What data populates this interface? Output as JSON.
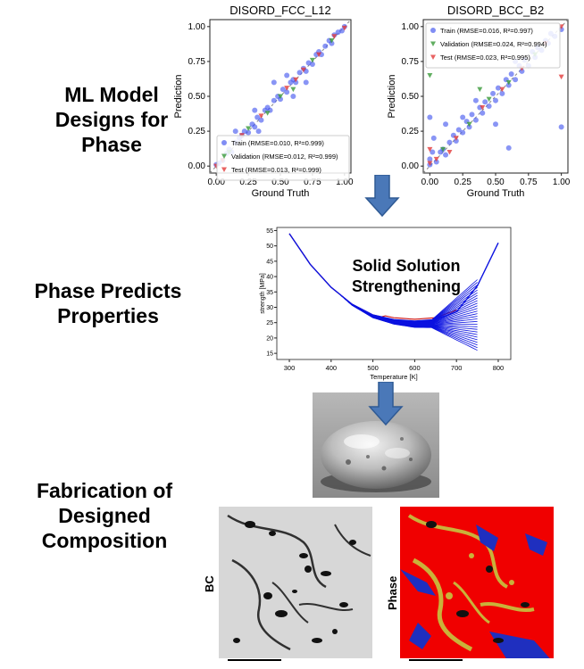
{
  "stages": [
    {
      "label": "ML Model\nDesigns for\nPhase"
    },
    {
      "label": "Phase Predicts\nProperties"
    },
    {
      "label": "Fabrication of\nDesigned\nComposition"
    }
  ],
  "chart_data": [
    {
      "type": "scatter",
      "title": "DISORD_FCC_L12",
      "xlabel": "Ground Truth",
      "ylabel": "Prediction",
      "xlim": [
        -0.05,
        1.05
      ],
      "ylim": [
        -0.05,
        1.05
      ],
      "xticks": [
        "0.00",
        "0.25",
        "0.50",
        "0.75",
        "1.00"
      ],
      "yticks": [
        "0.00",
        "0.25",
        "0.50",
        "0.75",
        "1.00"
      ],
      "legend_position": "lower-right",
      "series": [
        {
          "name": "Train (RMSE=0.010, R²=0.999)",
          "marker": "circle",
          "color": "#4a5cf0"
        },
        {
          "name": "Validation (RMSE=0.012, R²=0.999)",
          "marker": "triangle-down",
          "color": "#3a9a3a"
        },
        {
          "name": "Test (RMSE=0.013, R²=0.999)",
          "marker": "triangle-down",
          "color": "#e23b3b"
        }
      ],
      "points": {
        "train": [
          [
            0,
            0.01
          ],
          [
            0.02,
            0.02
          ],
          [
            0.05,
            0.04
          ],
          [
            0.08,
            0.09
          ],
          [
            0.1,
            0.12
          ],
          [
            0.12,
            0.1
          ],
          [
            0.15,
            0.17
          ],
          [
            0.18,
            0.2
          ],
          [
            0.2,
            0.22
          ],
          [
            0.22,
            0.25
          ],
          [
            0.25,
            0.24
          ],
          [
            0.28,
            0.3
          ],
          [
            0.3,
            0.28
          ],
          [
            0.32,
            0.35
          ],
          [
            0.35,
            0.33
          ],
          [
            0.38,
            0.4
          ],
          [
            0.4,
            0.42
          ],
          [
            0.42,
            0.4
          ],
          [
            0.45,
            0.47
          ],
          [
            0.48,
            0.5
          ],
          [
            0.5,
            0.48
          ],
          [
            0.52,
            0.55
          ],
          [
            0.55,
            0.53
          ],
          [
            0.58,
            0.6
          ],
          [
            0.6,
            0.62
          ],
          [
            0.62,
            0.6
          ],
          [
            0.65,
            0.67
          ],
          [
            0.68,
            0.7
          ],
          [
            0.7,
            0.68
          ],
          [
            0.72,
            0.74
          ],
          [
            0.75,
            0.73
          ],
          [
            0.78,
            0.8
          ],
          [
            0.8,
            0.82
          ],
          [
            0.82,
            0.8
          ],
          [
            0.85,
            0.86
          ],
          [
            0.88,
            0.9
          ],
          [
            0.9,
            0.88
          ],
          [
            0.92,
            0.94
          ],
          [
            0.95,
            0.96
          ],
          [
            0.98,
            0.97
          ],
          [
            1,
            1
          ],
          [
            0.15,
            0.25
          ],
          [
            0.3,
            0.4
          ],
          [
            0.55,
            0.65
          ],
          [
            0.6,
            0.5
          ],
          [
            0.45,
            0.6
          ],
          [
            0.33,
            0.25
          ],
          [
            0.7,
            0.6
          ]
        ],
        "validation": [
          [
            0.1,
            0.1
          ],
          [
            0.25,
            0.27
          ],
          [
            0.5,
            0.5
          ],
          [
            0.6,
            0.55
          ],
          [
            0.75,
            0.76
          ],
          [
            0.9,
            0.9
          ],
          [
            0.4,
            0.38
          ]
        ],
        "test": [
          [
            0,
            0
          ],
          [
            0.05,
            0.04
          ],
          [
            0.2,
            0.22
          ],
          [
            0.35,
            0.36
          ],
          [
            0.55,
            0.56
          ],
          [
            0.68,
            0.69
          ],
          [
            0.8,
            0.8
          ],
          [
            0.92,
            0.93
          ],
          [
            1,
            0.99
          ],
          [
            0.62,
            0.62
          ]
        ]
      }
    },
    {
      "type": "scatter",
      "title": "DISORD_BCC_B2",
      "xlabel": "Ground Truth",
      "ylabel": "Prediction",
      "xlim": [
        -0.05,
        1.05
      ],
      "ylim": [
        -0.05,
        1.05
      ],
      "xticks": [
        "0.00",
        "0.25",
        "0.50",
        "0.75",
        "1.00"
      ],
      "yticks": [
        "0.00",
        "0.25",
        "0.50",
        "0.75",
        "1.00"
      ],
      "legend_position": "upper-left",
      "series": [
        {
          "name": "Train (RMSE=0.016, R²=0.997)",
          "marker": "circle",
          "color": "#4a5cf0"
        },
        {
          "name": "Validation (RMSE=0.024, R²=0.994)",
          "marker": "triangle-down",
          "color": "#3a9a3a"
        },
        {
          "name": "Test (RMSE=0.023, R²=0.995)",
          "marker": "triangle-down",
          "color": "#e23b3b"
        }
      ],
      "points": {
        "train": [
          [
            0,
            0.01
          ],
          [
            0,
            0.05
          ],
          [
            0.02,
            0.1
          ],
          [
            0.03,
            0.2
          ],
          [
            0,
            0.35
          ],
          [
            0.05,
            0.03
          ],
          [
            0.08,
            0.1
          ],
          [
            0.1,
            0.12
          ],
          [
            0.12,
            0.08
          ],
          [
            0.15,
            0.17
          ],
          [
            0.18,
            0.22
          ],
          [
            0.2,
            0.18
          ],
          [
            0.22,
            0.26
          ],
          [
            0.25,
            0.24
          ],
          [
            0.28,
            0.32
          ],
          [
            0.3,
            0.28
          ],
          [
            0.32,
            0.37
          ],
          [
            0.35,
            0.33
          ],
          [
            0.38,
            0.42
          ],
          [
            0.4,
            0.38
          ],
          [
            0.42,
            0.46
          ],
          [
            0.45,
            0.43
          ],
          [
            0.48,
            0.52
          ],
          [
            0.5,
            0.47
          ],
          [
            0.52,
            0.56
          ],
          [
            0.55,
            0.52
          ],
          [
            0.58,
            0.62
          ],
          [
            0.6,
            0.58
          ],
          [
            0.62,
            0.66
          ],
          [
            0.65,
            0.62
          ],
          [
            0.68,
            0.72
          ],
          [
            0.7,
            0.68
          ],
          [
            0.72,
            0.76
          ],
          [
            0.75,
            0.72
          ],
          [
            0.78,
            0.82
          ],
          [
            0.8,
            0.78
          ],
          [
            0.82,
            0.85
          ],
          [
            0.85,
            0.83
          ],
          [
            0.88,
            0.9
          ],
          [
            0.9,
            0.88
          ],
          [
            0.92,
            0.95
          ],
          [
            0.95,
            0.93
          ],
          [
            1,
            0.98
          ],
          [
            1,
            0.28
          ],
          [
            0.25,
            0.35
          ],
          [
            0.5,
            0.3
          ],
          [
            0.35,
            0.47
          ],
          [
            0.65,
            0.75
          ],
          [
            0.12,
            0.3
          ],
          [
            0.6,
            0.13
          ]
        ],
        "validation": [
          [
            0,
            0.65
          ],
          [
            0.1,
            0.12
          ],
          [
            0.3,
            0.3
          ],
          [
            0.45,
            0.48
          ],
          [
            0.6,
            0.6
          ],
          [
            0.8,
            0.8
          ],
          [
            0.38,
            0.55
          ]
        ],
        "test": [
          [
            0,
            0.02
          ],
          [
            0,
            0.12
          ],
          [
            0.05,
            0.05
          ],
          [
            0.2,
            0.2
          ],
          [
            0.4,
            0.42
          ],
          [
            0.55,
            0.55
          ],
          [
            0.7,
            0.7
          ],
          [
            0.88,
            0.88
          ],
          [
            1,
            1
          ],
          [
            1,
            0.64
          ],
          [
            0.15,
            0.1
          ]
        ]
      }
    },
    {
      "type": "line",
      "title": "",
      "annotation": "Solid Solution\nStrengthening",
      "xlabel": "Temperature [K]",
      "ylabel": "strength [MPa]",
      "xlim": [
        270,
        830
      ],
      "ylim": [
        13,
        56
      ],
      "xticks": [
        "300",
        "400",
        "500",
        "600",
        "700",
        "800"
      ],
      "yticks": [
        "15",
        "20",
        "25",
        "30",
        "35",
        "40",
        "45",
        "50",
        "55"
      ],
      "curve_color": "#0b12e0",
      "secondary_color": "#d02020",
      "main_curve": {
        "x": [
          300,
          350,
          400,
          450,
          500,
          550,
          600,
          650,
          700,
          750,
          800
        ],
        "y": [
          54,
          44,
          36.5,
          31,
          27.5,
          26,
          25.5,
          26,
          28.5,
          37,
          51
        ]
      },
      "branch_start_x": 640,
      "branch_end_x": 750,
      "branch_end_range": [
        16,
        39
      ],
      "branch_count": 28
    }
  ],
  "photo": {
    "description_color": "#9a9a9a"
  },
  "micrographs": [
    {
      "label": "BC"
    },
    {
      "label": "Phase"
    }
  ],
  "colors": {
    "arrow": "#4a78b8",
    "arrow_border": "#2f5a94",
    "phase_red": "#f00000",
    "phase_blue": "#1f2fbf",
    "phase_yellow": "#c9b23a"
  }
}
